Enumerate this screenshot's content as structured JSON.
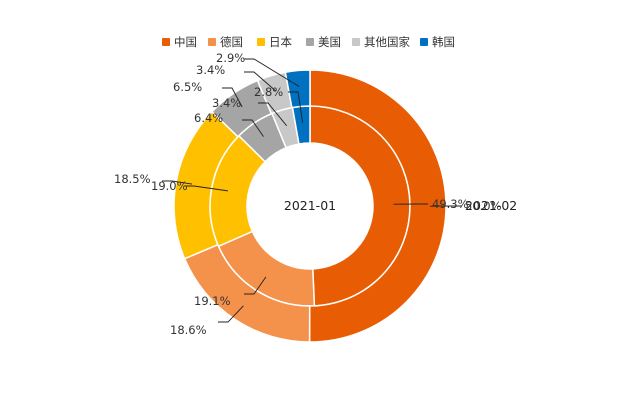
{
  "chart_data": {
    "type": "pie",
    "subtype": "nested-donut",
    "legend_position": "top-center",
    "colors": {
      "中国": "#e85d04",
      "德国": "#f4914a",
      "日本": "#ffc000",
      "美国": "#a5a5a5",
      "其他国家": "#c8c8c8",
      "韩国": "#0070c0"
    },
    "categories": [
      "中国",
      "德国",
      "日本",
      "美国",
      "其他国家",
      "韩国"
    ],
    "series": [
      {
        "name": "2021-01",
        "ring": "inner",
        "values": [
          49.3,
          19.1,
          19.0,
          6.4,
          3.4,
          2.8
        ],
        "labels": [
          "49.3%",
          "19.1%",
          "19.0%",
          "6.4%",
          "3.4%",
          "2.8%"
        ]
      },
      {
        "name": "2021-02",
        "ring": "outer",
        "values": [
          50.0,
          18.6,
          18.5,
          6.5,
          3.4,
          2.9
        ],
        "labels": [
          "50.0%",
          "18.6%",
          "18.5%",
          "6.5%",
          "3.4%",
          "2.9%"
        ]
      }
    ]
  }
}
